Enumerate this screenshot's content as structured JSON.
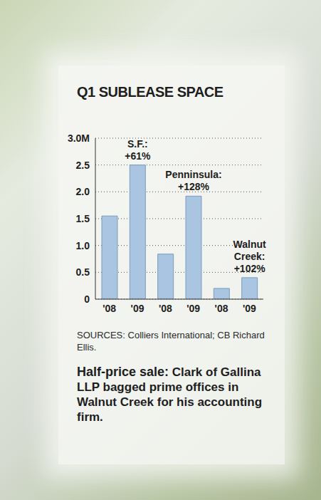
{
  "chart_data": {
    "type": "bar",
    "title": "Q1 SUBLEASE SPACE",
    "categories": [
      "'08",
      "'09",
      "'08",
      "'09",
      "'08",
      "'09"
    ],
    "values": [
      1.55,
      2.5,
      0.84,
      1.92,
      0.2,
      0.4
    ],
    "color": "#a9c5e1",
    "ylim": [
      0,
      3
    ],
    "yticks": [
      0,
      0.5,
      {
        "value": 1,
        "label": "1.0"
      },
      1.5,
      {
        "value": 2,
        "label": "2.0"
      },
      2.5,
      {
        "value": 3,
        "label": "3.0M"
      }
    ],
    "grid": true,
    "annotations": [
      {
        "index": 1,
        "text": "S.F.: +61%"
      },
      {
        "index": 3,
        "text": "Penninsula: +128%"
      },
      {
        "index": 5,
        "text": "Walnut Creek: +102%"
      }
    ],
    "source": "SOURCES: Colliers International; CB Richard Ellis.",
    "caption": {
      "lead": "Half-price sale:",
      "text": "Clark of Gallina LLP bagged prime offices in Walnut Creek for his accounting firm."
    }
  }
}
